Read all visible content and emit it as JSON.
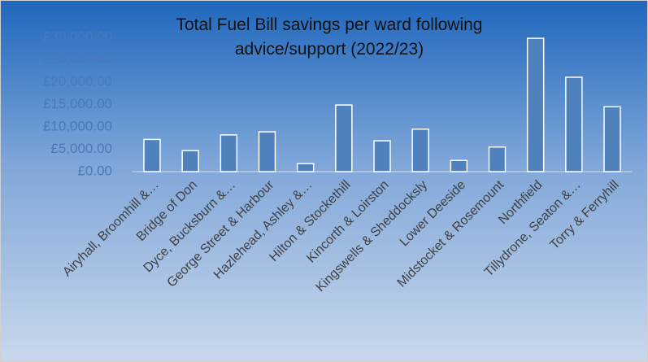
{
  "chart_data": {
    "type": "bar",
    "title": "Total Fuel Bill savings per ward following advice/support (2022/23)",
    "categories": [
      "Airyhall, Broomhill &…",
      "Bridge of Don",
      "Dyce, Bucksburn &…",
      "George Street & Harbour",
      "Hazlehead, Ashley &…",
      "Hilton & Stockethill",
      "Kincorth & Loirston",
      "Kingswells & Sheddocksly",
      "Lower Deeside",
      "Midstocket & Rosemount",
      "Northfield",
      "Tillydrone, Seaton &…",
      "Torry & Ferryhill"
    ],
    "values": [
      7200,
      4700,
      8200,
      8900,
      1800,
      14900,
      6900,
      9500,
      2500,
      5500,
      29800,
      21100,
      14500
    ],
    "color": "#4f81bd",
    "ylim": [
      0,
      30000
    ],
    "yticks": [
      {
        "value": 0,
        "label": "£0.00"
      },
      {
        "value": 5000,
        "label": "£5,000.00"
      },
      {
        "value": 10000,
        "label": "£10,000.00"
      },
      {
        "value": 15000,
        "label": "£15,000.00"
      },
      {
        "value": 20000,
        "label": "£20,000.00"
      },
      {
        "value": 25000,
        "label": "£25,000.00"
      },
      {
        "value": 30000,
        "label": "£30,000.00"
      }
    ],
    "grid": false
  }
}
